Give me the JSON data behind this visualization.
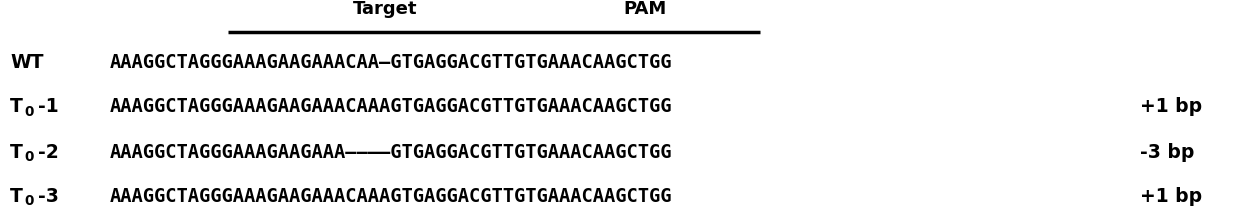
{
  "title_target": "Target",
  "title_pam": "PAM",
  "sequences": [
    "AAAGGCTAGGGAAAGAAGAAACAA–GTGAGGACGTTGTGAAACAAGCTGG",
    "AAAGGCTAGGGAAAGAAGAAACAAAGTGAGGACGTTGTGAAACAAGCTGG",
    "AAAGGCTAGGGAAAGAAGAAA––––GTGAGGACGTTGTGAAACAAGCTGG",
    "AAAGGCTAGGGAAAGAAGAAACAAAGTGAGGACGTTGTGAAACAAGCTGG"
  ],
  "labels_prefix": [
    "WT",
    "T",
    "T",
    "T"
  ],
  "labels_sub": [
    null,
    "0",
    "0",
    "0"
  ],
  "labels_num": [
    null,
    "-1",
    "-2",
    "-3"
  ],
  "suffixes": [
    "",
    "+1 bp",
    "-3 bp",
    "+1 bp"
  ],
  "background_color": "#ffffff",
  "text_color": "#000000"
}
